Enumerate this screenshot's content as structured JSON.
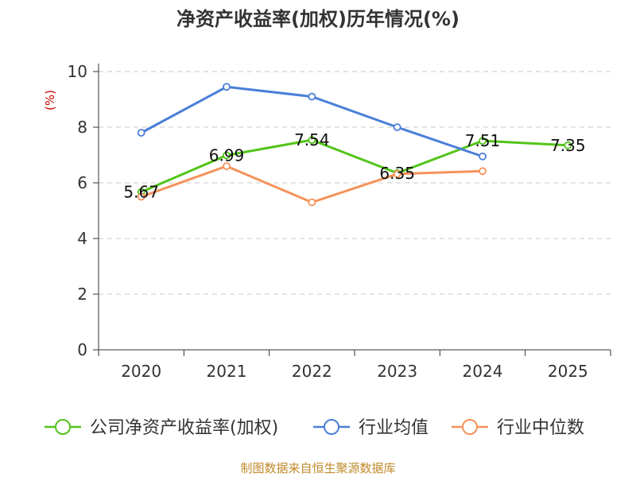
{
  "chart_data": {
    "type": "line",
    "title": "净资产收益率(加权)历年情况(%)",
    "ylabel": "(%)",
    "xlabel": "",
    "categories": [
      "2020",
      "2021",
      "2022",
      "2023",
      "2024",
      "2025"
    ],
    "ylim": [
      0,
      10
    ],
    "yticks": [
      0,
      2,
      4,
      6,
      8,
      10
    ],
    "grid": true,
    "legend_position": "bottom",
    "series": [
      {
        "name": "公司净资产收益率(加权)",
        "color": "#52c41a",
        "values": [
          5.67,
          6.99,
          7.54,
          6.35,
          7.51,
          7.35
        ],
        "labels": [
          "5.67",
          "6.99",
          "7.54",
          "6.35",
          "7.51",
          "7.35"
        ]
      },
      {
        "name": "行业均值",
        "color": "#4a7fd8",
        "values": [
          7.8,
          9.45,
          9.1,
          8.0,
          6.95,
          null
        ]
      },
      {
        "name": "行业中位数",
        "color": "#f5925a",
        "values": [
          5.5,
          6.6,
          5.3,
          6.32,
          6.42,
          null
        ]
      }
    ],
    "source": "制图数据来自恒生聚源数据库"
  }
}
